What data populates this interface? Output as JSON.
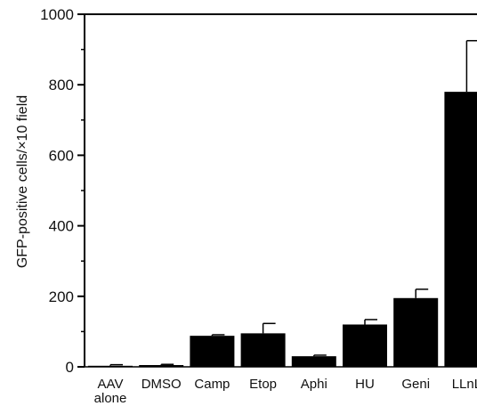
{
  "chart_data": {
    "type": "bar",
    "title": "",
    "xlabel": "",
    "ylabel": "GFP-positive cells/×10 field",
    "ylim": [
      0,
      1000
    ],
    "yticks": [
      0,
      200,
      400,
      600,
      800,
      1000
    ],
    "grid": false,
    "categories": [
      [
        "AAV",
        "alone"
      ],
      [
        "DMSO"
      ],
      [
        "Camp"
      ],
      [
        "Etop"
      ],
      [
        "Aphi"
      ],
      [
        "HU"
      ],
      [
        "Geni"
      ],
      [
        "LLnL"
      ]
    ],
    "values": [
      3,
      5,
      88,
      95,
      30,
      120,
      195,
      780
    ],
    "errors": [
      3,
      2,
      3,
      28,
      3,
      14,
      25,
      145
    ],
    "bar_color": "#000000"
  }
}
